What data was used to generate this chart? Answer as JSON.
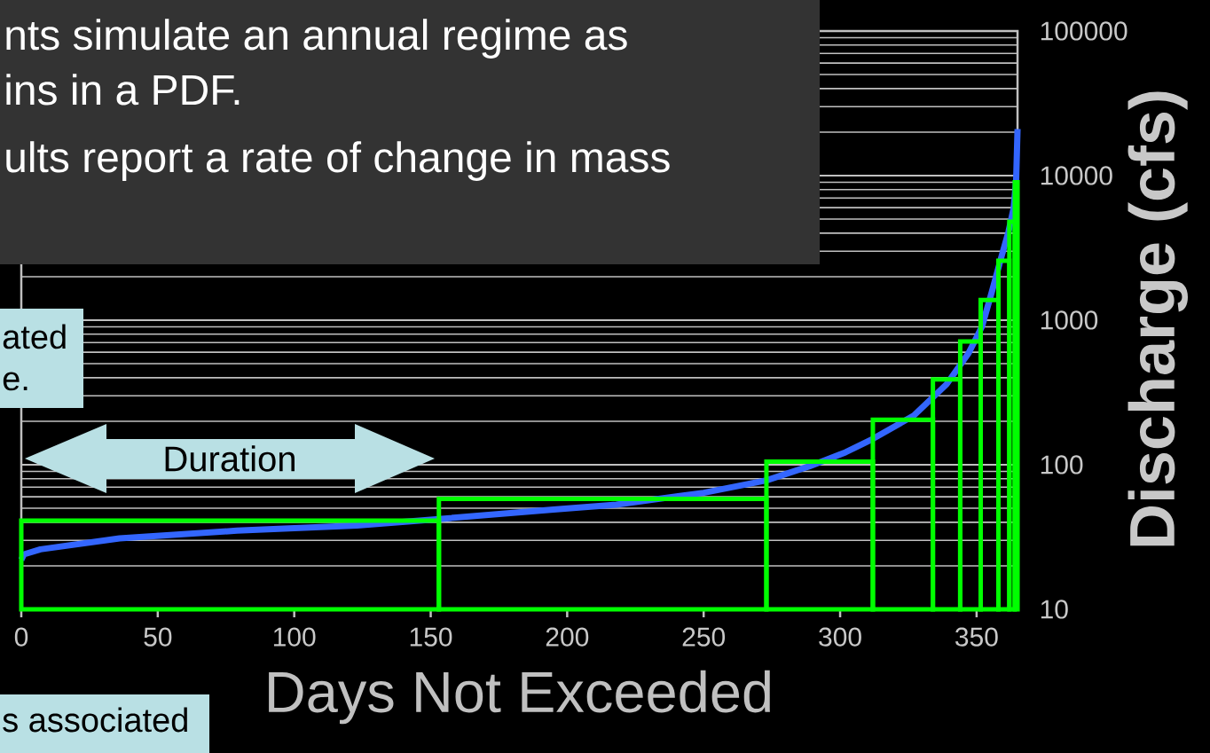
{
  "chart_data": {
    "type": "line",
    "xlabel": "Days Not Exceeded",
    "ylabel": "Discharge (cfs)",
    "log": "y",
    "grid": "y",
    "xlim": [
      0,
      365
    ],
    "ylim": [
      10,
      100000
    ],
    "xticks": [
      0,
      50,
      100,
      150,
      200,
      250,
      300,
      350
    ],
    "yticks": [
      10,
      100,
      1000,
      10000,
      100000
    ],
    "series": [
      {
        "color": "#3366ff",
        "x": [
          0,
          1,
          7,
          36,
          79,
          123,
          152,
          195,
          218,
          250,
          273,
          289,
          302,
          312,
          327,
          339,
          347,
          352,
          355.5,
          359,
          361.7,
          363.6,
          364.5,
          365
        ],
        "values": [
          22,
          24,
          26,
          31,
          35,
          38,
          42,
          49,
          53,
          64,
          78,
          98,
          122,
          151,
          219,
          360,
          588,
          906,
          1550,
          2700,
          4100,
          6000,
          9400,
          21000
        ]
      },
      {
        "type": "histogram",
        "color": "#00ff00",
        "bins": [
          0,
          153,
          273,
          312,
          334,
          344,
          351.5,
          358,
          362,
          364,
          365
        ],
        "values": [
          41,
          58,
          105,
          205,
          390,
          713,
          1380,
          2580,
          4800,
          9000
        ]
      }
    ],
    "annotations": [
      "nts simulate an annual regime as",
      "ins in a PDF.",
      "ults report a rate of change in mass",
      "ated",
      "e.",
      "Duration",
      "s associated"
    ]
  }
}
